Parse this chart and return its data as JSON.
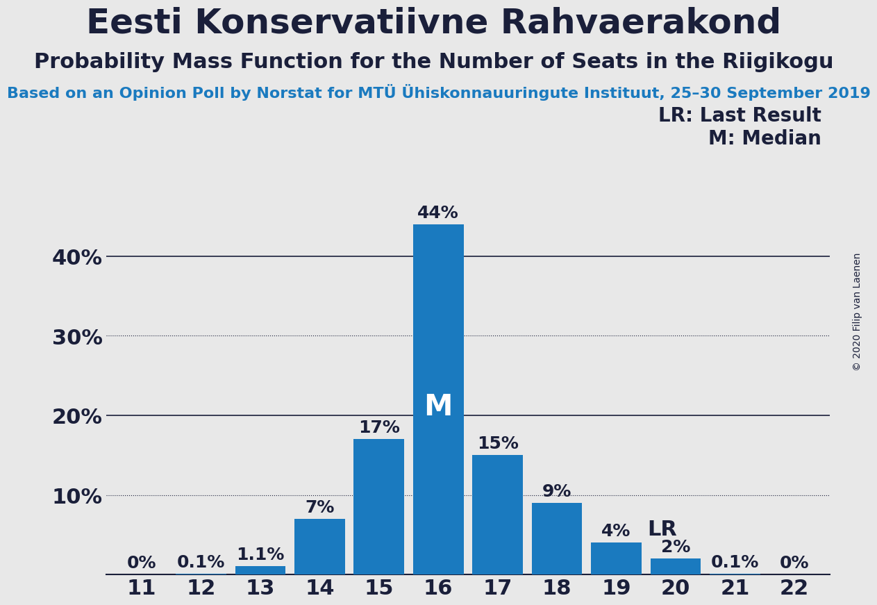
{
  "title": "Eesti Konservatiivne Rahvaerakond",
  "subtitle": "Probability Mass Function for the Number of Seats in the Riigikogu",
  "source_line": "Based on an Opinion Poll by Norstat for MTÜ Ühiskonnauuringute Instituut, 25–30 September 2019",
  "copyright": "© 2020 Filip van Laenen",
  "seats": [
    11,
    12,
    13,
    14,
    15,
    16,
    17,
    18,
    19,
    20,
    21,
    22
  ],
  "probabilities": [
    0.0,
    0.001,
    0.011,
    0.07,
    0.17,
    0.44,
    0.15,
    0.09,
    0.04,
    0.02,
    0.001,
    0.0
  ],
  "prob_labels": [
    "0%",
    "0.1%",
    "1.1%",
    "7%",
    "17%",
    "44%",
    "15%",
    "9%",
    "4%",
    "2%",
    "0.1%",
    "0%"
  ],
  "bar_color": "#1a7abf",
  "background_color": "#e8e8e8",
  "median_seat": 16,
  "last_result_seat": 19,
  "ytick_values": [
    0.0,
    0.1,
    0.2,
    0.3,
    0.4
  ],
  "ytick_labels": [
    "",
    "10%",
    "20%",
    "30%",
    "40%"
  ],
  "solid_grid": [
    0.2,
    0.4
  ],
  "dotted_grid": [
    0.1,
    0.3
  ],
  "text_color": "#1a1f3a",
  "source_color": "#1a7abf",
  "legend_lr": "LR: Last Result",
  "legend_m": "M: Median",
  "title_fontsize": 36,
  "subtitle_fontsize": 22,
  "source_fontsize": 16,
  "bar_label_fontsize": 18,
  "axis_tick_fontsize": 22,
  "median_label_fontsize": 30,
  "lr_label_fontsize": 22,
  "legend_fontsize": 20
}
